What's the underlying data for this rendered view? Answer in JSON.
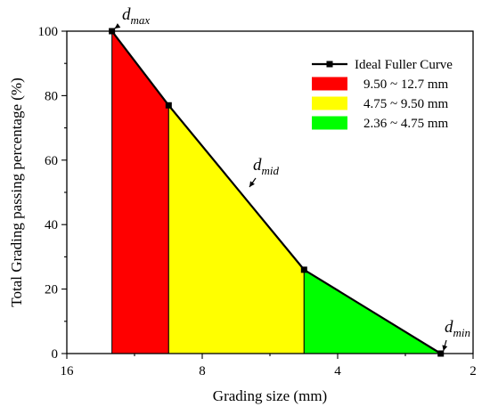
{
  "chart_data": {
    "type": "area",
    "xlabel": "Grading size (mm)",
    "ylabel": "Total Grading passing percentage (%)",
    "x_scale": "log",
    "x_reversed": true,
    "xlim": [
      16,
      2
    ],
    "ylim": [
      0,
      100
    ],
    "x_ticks": [
      16,
      8,
      4,
      2
    ],
    "x_tick_labels": [
      "16",
      "8",
      "4",
      "2"
    ],
    "y_ticks": [
      0,
      20,
      40,
      60,
      80,
      100
    ],
    "y_tick_labels": [
      "0",
      "20",
      "40",
      "60",
      "80",
      "100"
    ],
    "legend_position": "top-right",
    "series": [
      {
        "name": "Ideal Fuller Curve",
        "kind": "line",
        "color": "#000000",
        "marker": "square",
        "x": [
          12.7,
          9.5,
          4.75,
          2.36
        ],
        "y": [
          100,
          77,
          26,
          0
        ]
      }
    ],
    "bands": [
      {
        "name": "9.50 ~ 12.7 mm",
        "color": "#ff0000",
        "x_from": 12.7,
        "x_to": 9.5
      },
      {
        "name": "4.75 ~ 9.50 mm",
        "color": "#ffff00",
        "x_from": 9.5,
        "x_to": 4.75
      },
      {
        "name": "2.36 ~ 4.75 mm",
        "color": "#00ff00",
        "x_from": 4.75,
        "x_to": 2.36
      }
    ],
    "annotations": [
      {
        "base": "d",
        "sub": "max",
        "x": 12.7,
        "y": 100
      },
      {
        "base": "d",
        "sub": "mid",
        "x": 6.8,
        "y": 53
      },
      {
        "base": "d",
        "sub": "min",
        "x": 2.36,
        "y": 0
      }
    ]
  }
}
